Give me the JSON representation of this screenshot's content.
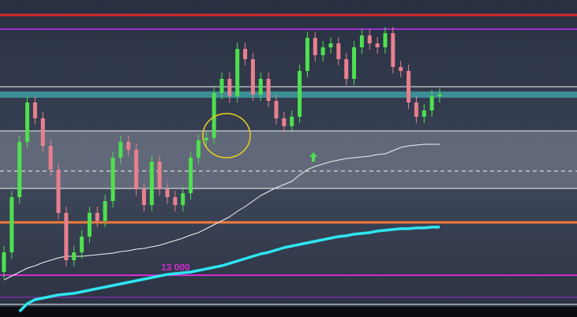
{
  "chart_data": {
    "type": "candlestick",
    "ylim": [
      12947,
      13349
    ],
    "up_color": "#4fe04f",
    "down_color": "#e8808e",
    "open": [
      13004,
      13029,
      13099,
      13169,
      13219,
      13199,
      13164,
      13134,
      13079,
      13019,
      13029,
      13049,
      13079,
      13069,
      13094,
      13149,
      13169,
      13159,
      13109,
      13089,
      13144,
      13109,
      13099,
      13089,
      13104,
      13149,
      13171,
      13174,
      13231,
      13249,
      13227,
      13287,
      13274,
      13229,
      13249,
      13221,
      13199,
      13189,
      13201,
      13259,
      13301,
      13279,
      13289,
      13294,
      13274,
      13249,
      13289,
      13304,
      13294,
      13289,
      13307,
      13264,
      13259,
      13219,
      13201,
      13209,
      13227
    ],
    "high": [
      13037,
      13107,
      13177,
      13227,
      13227,
      13207,
      13172,
      13142,
      13087,
      13037,
      13057,
      13087,
      13087,
      13102,
      13157,
      13177,
      13177,
      13167,
      13117,
      13152,
      13152,
      13117,
      13107,
      13112,
      13157,
      13179,
      13182,
      13239,
      13257,
      13257,
      13295,
      13295,
      13282,
      13257,
      13257,
      13229,
      13207,
      13209,
      13267,
      13309,
      13309,
      13297,
      13302,
      13302,
      13282,
      13297,
      13312,
      13312,
      13302,
      13315,
      13315,
      13272,
      13267,
      13227,
      13217,
      13235,
      13237
    ],
    "low": [
      12996,
      13021,
      13091,
      13161,
      13191,
      13156,
      13126,
      13071,
      13011,
      13011,
      13021,
      13041,
      13061,
      13061,
      13086,
      13141,
      13151,
      13101,
      13081,
      13081,
      13101,
      13091,
      13081,
      13081,
      13096,
      13141,
      13163,
      13166,
      13223,
      13219,
      13219,
      13266,
      13221,
      13221,
      13213,
      13191,
      13181,
      13181,
      13193,
      13251,
      13271,
      13271,
      13281,
      13266,
      13241,
      13241,
      13281,
      13286,
      13281,
      13281,
      13256,
      13251,
      13211,
      13193,
      13193,
      13201,
      13219
    ],
    "close": [
      13029,
      13099,
      13169,
      13219,
      13199,
      13164,
      13134,
      13079,
      13019,
      13029,
      13049,
      13079,
      13069,
      13094,
      13149,
      13169,
      13159,
      13109,
      13089,
      13144,
      13109,
      13099,
      13089,
      13104,
      13149,
      13171,
      13174,
      13231,
      13249,
      13227,
      13287,
      13274,
      13229,
      13249,
      13221,
      13199,
      13189,
      13201,
      13259,
      13301,
      13279,
      13289,
      13294,
      13274,
      13249,
      13289,
      13304,
      13294,
      13289,
      13307,
      13264,
      13259,
      13219,
      13201,
      13209,
      13227,
      13229
    ],
    "series": [
      {
        "color": "#f2f2f2",
        "width": 1,
        "values": [
          12994,
          12999,
          13004,
          13009,
          13012,
          13016,
          13019,
          13022,
          13024,
          13024,
          13024,
          13025,
          13026,
          13027,
          13028,
          13030,
          13031,
          13033,
          13034,
          13036,
          13038,
          13041,
          13044,
          13047,
          13051,
          13054,
          13059,
          13064,
          13069,
          13074,
          13081,
          13087,
          13094,
          13101,
          13106,
          13111,
          13115,
          13119,
          13127,
          13134,
          13138,
          13141,
          13144,
          13146,
          13148,
          13149,
          13150,
          13151,
          13153,
          13154,
          13158,
          13162,
          13164,
          13165,
          13166,
          13166,
          13166
        ]
      },
      {
        "color": "#2ee6f0",
        "width": 3.5,
        "values": [
          null,
          null,
          12954,
          12964,
          12969,
          12971,
          12973,
          12975,
          12976,
          12977,
          12979,
          12981,
          12983,
          12985,
          12987,
          12989,
          12991,
          12993,
          12995,
          12997,
          12999,
          13001,
          13002,
          13003,
          13004,
          13006,
          13008,
          13010,
          13012,
          13015,
          13018,
          13021,
          13024,
          13027,
          13029,
          13032,
          13035,
          13037,
          13039,
          13041,
          13043,
          13045,
          13047,
          13049,
          13050,
          13052,
          13053,
          13054,
          13056,
          13057,
          13058,
          13059,
          13059,
          13060,
          13060,
          13061,
          13061
        ]
      }
    ],
    "band": {
      "from": 13225,
      "to": 13233,
      "color": "#3fa3a8"
    },
    "zone": {
      "from": 13110,
      "to": 13183,
      "color": "#6f7586"
    },
    "levels": [
      {
        "value": 13330,
        "color": "#d62828",
        "width": 3
      },
      {
        "value": 13312,
        "color": "#9b30d0",
        "width": 2
      },
      {
        "value": 13239,
        "color": "#f2f2f2",
        "width": 1
      },
      {
        "value": 13183,
        "color": "#f2f2f2",
        "width": 1
      },
      {
        "value": 13132,
        "color": "#f2f2f2",
        "width": 1,
        "dash": true
      },
      {
        "value": 13110,
        "color": "#f2f2f2",
        "width": 1
      },
      {
        "value": 13067,
        "color": "#f07a3a",
        "width": 3
      },
      {
        "value": 13000,
        "color": "#d42bd4",
        "width": 2,
        "label": "13 000"
      },
      {
        "value": 12972,
        "color": "#9b30d0",
        "width": 1
      },
      {
        "value": 12963,
        "color": "#f2f2f2",
        "width": 1
      }
    ]
  }
}
